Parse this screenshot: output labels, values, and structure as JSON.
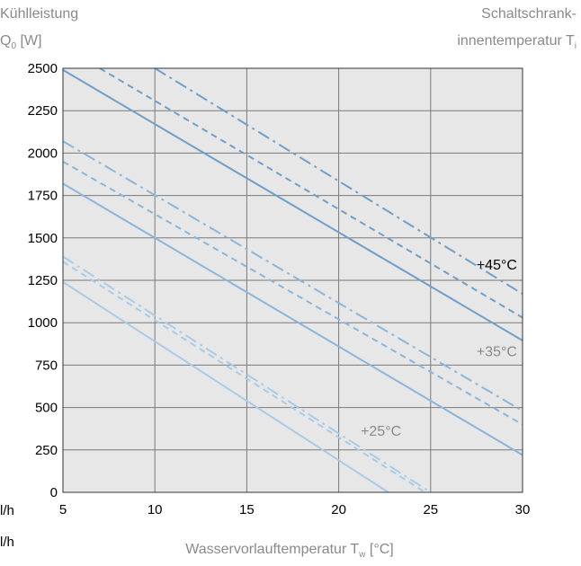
{
  "chart_data": {
    "type": "line",
    "ylabel_lines": [
      "Kühlleistung",
      "Q",
      "0",
      " [W]"
    ],
    "legend_title": [
      "Schaltschrank-",
      "innentemperatur T",
      "i"
    ],
    "xlabel": [
      "Wasservorlauftemperatur T",
      "w",
      " [°C]"
    ],
    "row_labels": [
      "l/h",
      "l/h"
    ],
    "xlim": [
      5,
      30
    ],
    "ylim": [
      0,
      2500
    ],
    "x_ticks": [
      5,
      10,
      15,
      20,
      25,
      30
    ],
    "y_ticks": [
      0,
      250,
      500,
      750,
      1000,
      1250,
      1500,
      1750,
      2000,
      2250,
      2500
    ],
    "grid": true,
    "plot_background": "#e7e7e7",
    "groups": [
      {
        "name": "+45°C",
        "color": "#6e9fc9",
        "label_position": [
          28.6,
          1340
        ],
        "series": [
          {
            "style": "solid",
            "points": [
              [
                5,
                2490
              ],
              [
                30,
                895
              ]
            ]
          },
          {
            "style": "dashed",
            "points": [
              [
                7,
                2500
              ],
              [
                30,
                1030
              ]
            ]
          },
          {
            "style": "dashdot",
            "points": [
              [
                10,
                2500
              ],
              [
                30,
                1170
              ]
            ]
          }
        ]
      },
      {
        "name": "+35°C",
        "color": "#8ab6dc",
        "label_position": [
          28.6,
          830
        ],
        "series": [
          {
            "style": "solid",
            "points": [
              [
                5,
                1820
              ],
              [
                30,
                220
              ]
            ]
          },
          {
            "style": "dashed",
            "points": [
              [
                5,
                1950
              ],
              [
                30,
                400
              ]
            ]
          },
          {
            "style": "dashdot",
            "points": [
              [
                5,
                2070
              ],
              [
                30,
                480
              ]
            ]
          }
        ]
      },
      {
        "name": "+25°C",
        "color": "#a9cbe6",
        "label_position": [
          22.3,
          360
        ],
        "series": [
          {
            "style": "solid",
            "points": [
              [
                5,
                1240
              ],
              [
                22.7,
                0
              ]
            ]
          },
          {
            "style": "dashed",
            "points": [
              [
                5,
                1360
              ],
              [
                24.7,
                0
              ]
            ]
          },
          {
            "style": "dashdot",
            "points": [
              [
                5,
                1390
              ],
              [
                25.0,
                0
              ]
            ]
          }
        ]
      }
    ]
  }
}
